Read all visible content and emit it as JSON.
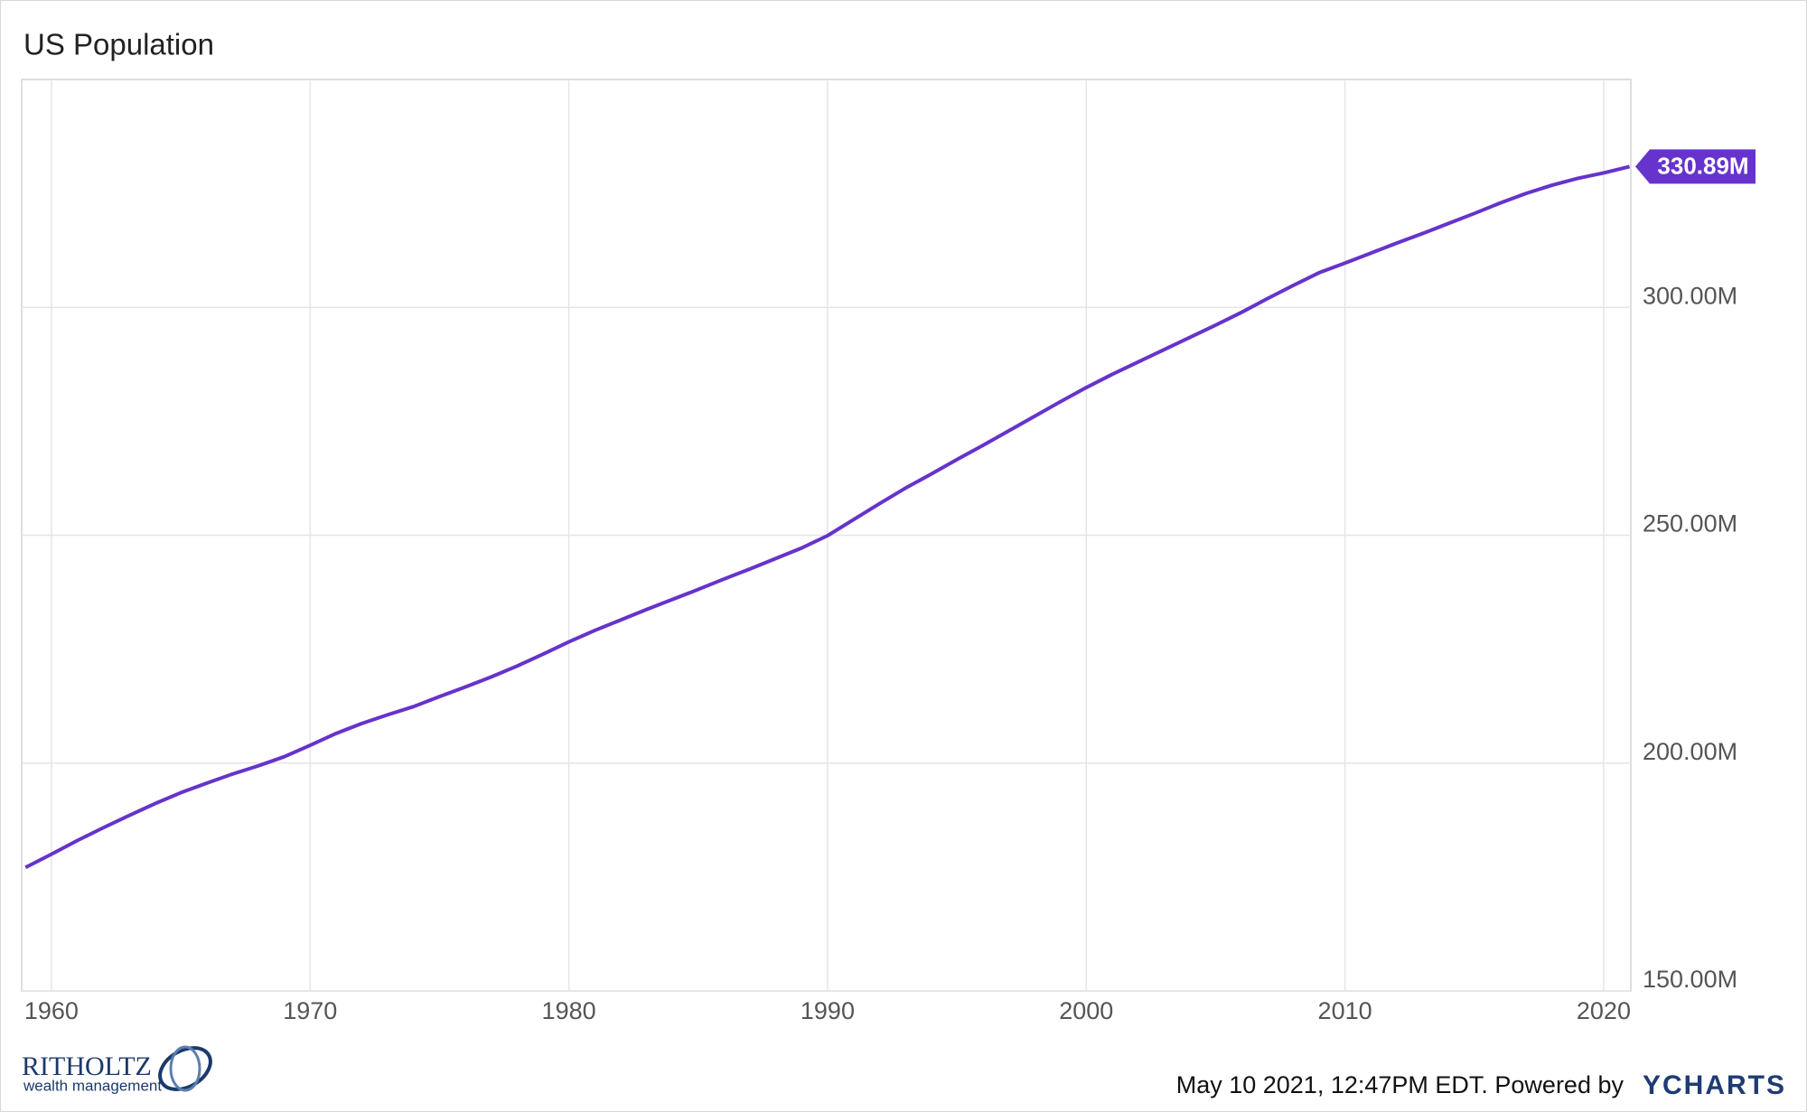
{
  "chart_data": {
    "type": "line",
    "title": "US Population",
    "x": [
      1959,
      1960,
      1961,
      1962,
      1963,
      1964,
      1965,
      1966,
      1967,
      1968,
      1969,
      1970,
      1971,
      1972,
      1973,
      1974,
      1975,
      1976,
      1977,
      1978,
      1979,
      1980,
      1981,
      1982,
      1983,
      1984,
      1985,
      1986,
      1987,
      1988,
      1989,
      1990,
      1991,
      1992,
      1993,
      1994,
      1995,
      1996,
      1997,
      1998,
      1999,
      2000,
      2001,
      2002,
      2003,
      2004,
      2005,
      2006,
      2007,
      2008,
      2009,
      2010,
      2011,
      2012,
      2013,
      2014,
      2015,
      2016,
      2017,
      2018,
      2019,
      2020,
      2021
    ],
    "series": [
      {
        "name": "US Population",
        "color": "#6633cc",
        "values": [
          177.1,
          180.0,
          183.0,
          185.8,
          188.5,
          191.1,
          193.5,
          195.6,
          197.6,
          199.4,
          201.4,
          203.9,
          206.5,
          208.7,
          210.6,
          212.4,
          214.6,
          216.7,
          218.9,
          221.3,
          223.9,
          226.6,
          229.1,
          231.4,
          233.7,
          235.9,
          238.1,
          240.4,
          242.6,
          244.9,
          247.2,
          249.9,
          253.4,
          256.9,
          260.3,
          263.4,
          266.6,
          269.7,
          272.9,
          276.1,
          279.3,
          282.4,
          285.3,
          288.0,
          290.7,
          293.4,
          296.1,
          298.9,
          301.9,
          304.8,
          307.6,
          309.7,
          311.9,
          314.1,
          316.2,
          318.4,
          320.6,
          322.9,
          325.0,
          326.8,
          328.3,
          329.5,
          330.89
        ],
        "value_labels": [
          null,
          null,
          null,
          null,
          null,
          null,
          null,
          null,
          null,
          null,
          null,
          null,
          null,
          null,
          null,
          null,
          null,
          null,
          null,
          null,
          null,
          null,
          null,
          null,
          null,
          null,
          null,
          null,
          null,
          null,
          null,
          null,
          null,
          null,
          null,
          null,
          null,
          null,
          null,
          null,
          null,
          null,
          null,
          null,
          null,
          null,
          null,
          null,
          null,
          null,
          null,
          null,
          null,
          null,
          null,
          null,
          null,
          null,
          null,
          null,
          null,
          null,
          "330.89M"
        ]
      }
    ],
    "xlim": [
      1958.85,
      2021.05
    ],
    "xticks": [
      1960,
      1970,
      1980,
      1990,
      2000,
      2010,
      2020
    ],
    "ylim": [
      150,
      350
    ],
    "yticks": [
      {
        "value": 150,
        "label": "150.00M"
      },
      {
        "value": 200,
        "label": "200.00M"
      },
      {
        "value": 250,
        "label": "250.00M"
      },
      {
        "value": 300,
        "label": "300.00M"
      }
    ],
    "grid": true
  },
  "logo": {
    "name": "RITHOLTZ",
    "tagline": "wealth management"
  },
  "footer": {
    "timestamp": "May 10 2021, 12:47PM EDT. Powered by",
    "brand": "YCHARTS"
  }
}
